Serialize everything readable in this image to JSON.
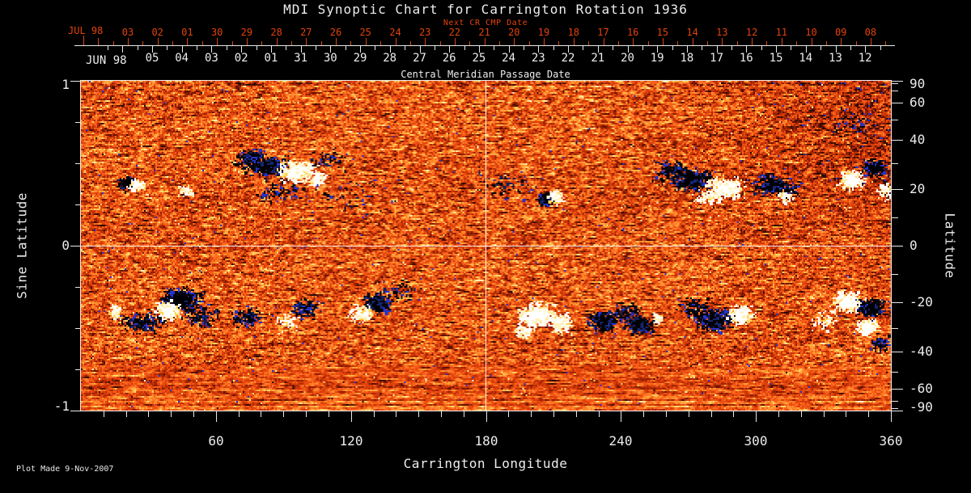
{
  "title": "MDI Synoptic Chart for Carrington Rotation 1936",
  "colors": {
    "accent_red": "#e2430c",
    "text": "#ededed",
    "grid": "#ffffff",
    "background": "#000000"
  },
  "top_axis": {
    "label": "Next CR CMP Date",
    "month_label": "JUL 98",
    "day_labels": [
      "03",
      "02",
      "01",
      "30",
      "29",
      "28",
      "27",
      "26",
      "25",
      "24",
      "23",
      "22",
      "21",
      "20",
      "19",
      "18",
      "17",
      "16",
      "15",
      "14",
      "13",
      "12",
      "11",
      "10",
      "09",
      "08"
    ]
  },
  "cmp_axis": {
    "label": "Central Meridian Passage Date",
    "month_label": "JUN 98",
    "day_labels": [
      "05",
      "04",
      "03",
      "02",
      "01",
      "31",
      "30",
      "29",
      "28",
      "27",
      "26",
      "25",
      "24",
      "23",
      "22",
      "21",
      "20",
      "19",
      "18",
      "17",
      "16",
      "15",
      "14",
      "13",
      "12"
    ]
  },
  "left_axis": {
    "label": "Sine Latitude",
    "labeled_values": [
      "1",
      "0",
      "-1"
    ],
    "minor_step": 0.25,
    "range": [
      1,
      -1
    ]
  },
  "right_axis": {
    "label": "Latitude",
    "labeled_values": [
      90,
      60,
      40,
      20,
      0,
      -20,
      -40,
      -60,
      -90
    ],
    "minor_values": [
      80,
      70,
      50,
      30,
      10,
      -10,
      -30,
      -50,
      -70,
      -80
    ]
  },
  "bottom_axis": {
    "label": "Carrington Longitude",
    "labeled_values": [
      60,
      120,
      180,
      240,
      300,
      360
    ],
    "minor_step_deg": 10,
    "range": [
      0,
      360
    ]
  },
  "footer": {
    "text": "Plot Made  9-Nov-2007"
  },
  "chart_data": {
    "type": "heatmap",
    "title": "MDI Synoptic Chart for Carrington Rotation 1936",
    "xlabel": "Carrington Longitude",
    "x_range": [
      0,
      360
    ],
    "ylabel": "Sine Latitude",
    "y_range": [
      -1,
      1
    ],
    "y2label": "Latitude",
    "colormap": "strong negative field = black/blue, quiet sun = red/orange mottle, strong positive field = yellow/white",
    "grid_lines": {
      "x": 180,
      "y": 0
    },
    "active_regions": [
      {
        "lon": 20.5,
        "sin_lat": 0.38,
        "pol": "neg",
        "spread_lon": 3.5,
        "spread_slat": 0.035,
        "dots": 90,
        "core": true
      },
      {
        "lon": 24.8,
        "sin_lat": 0.365,
        "pol": "pos",
        "spread_lon": 3.0,
        "spread_slat": 0.03,
        "dots": 80,
        "core": true
      },
      {
        "lon": 46.0,
        "sin_lat": 0.335,
        "pol": "pos",
        "spread_lon": 2.5,
        "spread_slat": 0.03,
        "dots": 45,
        "core": false
      },
      {
        "lon": 75.0,
        "sin_lat": 0.53,
        "pol": "neg",
        "spread_lon": 6.0,
        "spread_slat": 0.05,
        "dots": 150,
        "core": false
      },
      {
        "lon": 83.0,
        "sin_lat": 0.48,
        "pol": "neg",
        "spread_lon": 8.0,
        "spread_slat": 0.055,
        "dots": 380,
        "core": true
      },
      {
        "lon": 95.5,
        "sin_lat": 0.45,
        "pol": "pos",
        "spread_lon": 6.5,
        "spread_slat": 0.05,
        "dots": 330,
        "core": true
      },
      {
        "lon": 104.5,
        "sin_lat": 0.41,
        "pol": "pos",
        "spread_lon": 4.5,
        "spread_slat": 0.045,
        "dots": 120,
        "core": false
      },
      {
        "lon": 88.0,
        "sin_lat": 0.33,
        "pol": "neg",
        "spread_lon": 9.0,
        "spread_slat": 0.05,
        "dots": 80,
        "core": false
      },
      {
        "lon": 110.0,
        "sin_lat": 0.52,
        "pol": "neg",
        "spread_lon": 7.0,
        "spread_slat": 0.05,
        "dots": 60,
        "core": false
      },
      {
        "lon": 122.0,
        "sin_lat": 0.31,
        "pol": "neg",
        "spread_lon": 16.0,
        "spread_slat": 0.09,
        "dots": 45,
        "core": false
      },
      {
        "lon": 190.0,
        "sin_lat": 0.37,
        "pol": "neg",
        "spread_lon": 13.0,
        "spread_slat": 0.08,
        "dots": 55,
        "core": false
      },
      {
        "lon": 205.8,
        "sin_lat": 0.285,
        "pol": "neg",
        "spread_lon": 2.6,
        "spread_slat": 0.033,
        "dots": 170,
        "core": true
      },
      {
        "lon": 210.8,
        "sin_lat": 0.3,
        "pol": "pos",
        "spread_lon": 2.6,
        "spread_slat": 0.033,
        "dots": 170,
        "core": true
      },
      {
        "lon": 262.0,
        "sin_lat": 0.46,
        "pol": "neg",
        "spread_lon": 6.0,
        "spread_slat": 0.05,
        "dots": 130,
        "core": false
      },
      {
        "lon": 271.5,
        "sin_lat": 0.4,
        "pol": "neg",
        "spread_lon": 7.5,
        "spread_slat": 0.055,
        "dots": 420,
        "core": true
      },
      {
        "lon": 286.5,
        "sin_lat": 0.35,
        "pol": "pos",
        "spread_lon": 6.5,
        "spread_slat": 0.05,
        "dots": 380,
        "core": true
      },
      {
        "lon": 279.0,
        "sin_lat": 0.295,
        "pol": "pos",
        "spread_lon": 5.0,
        "spread_slat": 0.04,
        "dots": 90,
        "core": false
      },
      {
        "lon": 306.5,
        "sin_lat": 0.37,
        "pol": "neg",
        "spread_lon": 5.5,
        "spread_slat": 0.05,
        "dots": 260,
        "core": true
      },
      {
        "lon": 315.0,
        "sin_lat": 0.335,
        "pol": "neg",
        "spread_lon": 4.5,
        "spread_slat": 0.04,
        "dots": 90,
        "core": false
      },
      {
        "lon": 313.5,
        "sin_lat": 0.295,
        "pol": "pos",
        "spread_lon": 3.5,
        "spread_slat": 0.03,
        "dots": 50,
        "core": false
      },
      {
        "lon": 342.5,
        "sin_lat": 0.4,
        "pol": "pos",
        "spread_lon": 4.5,
        "spread_slat": 0.045,
        "dots": 210,
        "core": true
      },
      {
        "lon": 353.0,
        "sin_lat": 0.47,
        "pol": "neg",
        "spread_lon": 4.5,
        "spread_slat": 0.045,
        "dots": 240,
        "core": true
      },
      {
        "lon": 357.5,
        "sin_lat": 0.335,
        "pol": "pos",
        "spread_lon": 2.8,
        "spread_slat": 0.045,
        "dots": 70,
        "core": false
      },
      {
        "lon": 342.0,
        "sin_lat": 0.73,
        "pol": "neg",
        "spread_lon": 9.0,
        "spread_slat": 0.07,
        "dots": 50,
        "core": false
      },
      {
        "lon": 45.0,
        "sin_lat": -0.325,
        "pol": "neg",
        "spread_lon": 7.5,
        "spread_slat": 0.055,
        "dots": 420,
        "core": true
      },
      {
        "lon": 38.5,
        "sin_lat": -0.4,
        "pol": "pos",
        "spread_lon": 4.5,
        "spread_slat": 0.05,
        "dots": 260,
        "core": true
      },
      {
        "lon": 27.0,
        "sin_lat": -0.465,
        "pol": "neg",
        "spread_lon": 8.0,
        "spread_slat": 0.05,
        "dots": 190,
        "core": false
      },
      {
        "lon": 15.0,
        "sin_lat": -0.4,
        "pol": "pos",
        "spread_lon": 2.2,
        "spread_slat": 0.035,
        "dots": 60,
        "core": true
      },
      {
        "lon": 53.0,
        "sin_lat": -0.43,
        "pol": "neg",
        "spread_lon": 7.0,
        "spread_slat": 0.055,
        "dots": 120,
        "core": false
      },
      {
        "lon": 74.0,
        "sin_lat": -0.435,
        "pol": "neg",
        "spread_lon": 5.5,
        "spread_slat": 0.05,
        "dots": 140,
        "core": false
      },
      {
        "lon": 100.0,
        "sin_lat": -0.385,
        "pol": "neg",
        "spread_lon": 5.5,
        "spread_slat": 0.05,
        "dots": 130,
        "core": false
      },
      {
        "lon": 92.0,
        "sin_lat": -0.46,
        "pol": "pos",
        "spread_lon": 4.5,
        "spread_slat": 0.04,
        "dots": 55,
        "core": false
      },
      {
        "lon": 131.5,
        "sin_lat": -0.35,
        "pol": "neg",
        "spread_lon": 5.5,
        "spread_slat": 0.05,
        "dots": 300,
        "core": true
      },
      {
        "lon": 124.5,
        "sin_lat": -0.415,
        "pol": "pos",
        "spread_lon": 4.5,
        "spread_slat": 0.045,
        "dots": 140,
        "core": false
      },
      {
        "lon": 141.0,
        "sin_lat": -0.27,
        "pol": "neg",
        "spread_lon": 7.0,
        "spread_slat": 0.05,
        "dots": 55,
        "core": false
      },
      {
        "lon": 202.0,
        "sin_lat": -0.42,
        "pol": "pos",
        "spread_lon": 6.5,
        "spread_slat": 0.065,
        "dots": 380,
        "core": true
      },
      {
        "lon": 213.0,
        "sin_lat": -0.465,
        "pol": "pos",
        "spread_lon": 4.5,
        "spread_slat": 0.05,
        "dots": 200,
        "core": true
      },
      {
        "lon": 196.5,
        "sin_lat": -0.52,
        "pol": "pos",
        "spread_lon": 3.5,
        "spread_slat": 0.04,
        "dots": 90,
        "core": false
      },
      {
        "lon": 232.0,
        "sin_lat": -0.455,
        "pol": "neg",
        "spread_lon": 5.5,
        "spread_slat": 0.055,
        "dots": 260,
        "core": true
      },
      {
        "lon": 248.0,
        "sin_lat": -0.48,
        "pol": "neg",
        "spread_lon": 5.5,
        "spread_slat": 0.05,
        "dots": 220,
        "core": true
      },
      {
        "lon": 242.5,
        "sin_lat": -0.4,
        "pol": "neg",
        "spread_lon": 5.5,
        "spread_slat": 0.045,
        "dots": 80,
        "core": false
      },
      {
        "lon": 256.5,
        "sin_lat": -0.445,
        "pol": "pos",
        "spread_lon": 1.8,
        "spread_slat": 0.028,
        "dots": 40,
        "core": true
      },
      {
        "lon": 281.5,
        "sin_lat": -0.45,
        "pol": "neg",
        "spread_lon": 6.5,
        "spread_slat": 0.055,
        "dots": 420,
        "core": true
      },
      {
        "lon": 293.5,
        "sin_lat": -0.42,
        "pol": "pos",
        "spread_lon": 4.5,
        "spread_slat": 0.05,
        "dots": 240,
        "core": true
      },
      {
        "lon": 272.5,
        "sin_lat": -0.38,
        "pol": "neg",
        "spread_lon": 5.5,
        "spread_slat": 0.055,
        "dots": 100,
        "core": false
      },
      {
        "lon": 341.0,
        "sin_lat": -0.34,
        "pol": "pos",
        "spread_lon": 5.5,
        "spread_slat": 0.05,
        "dots": 380,
        "core": true
      },
      {
        "lon": 351.0,
        "sin_lat": -0.38,
        "pol": "neg",
        "spread_lon": 4.5,
        "spread_slat": 0.045,
        "dots": 330,
        "core": true
      },
      {
        "lon": 349.5,
        "sin_lat": -0.49,
        "pol": "pos",
        "spread_lon": 4.5,
        "spread_slat": 0.04,
        "dots": 200,
        "core": true
      },
      {
        "lon": 355.5,
        "sin_lat": -0.59,
        "pol": "neg",
        "spread_lon": 3.5,
        "spread_slat": 0.04,
        "dots": 90,
        "core": false
      },
      {
        "lon": 331.0,
        "sin_lat": -0.45,
        "pol": "pos",
        "spread_lon": 4.5,
        "spread_slat": 0.05,
        "dots": 60,
        "core": false
      }
    ]
  }
}
